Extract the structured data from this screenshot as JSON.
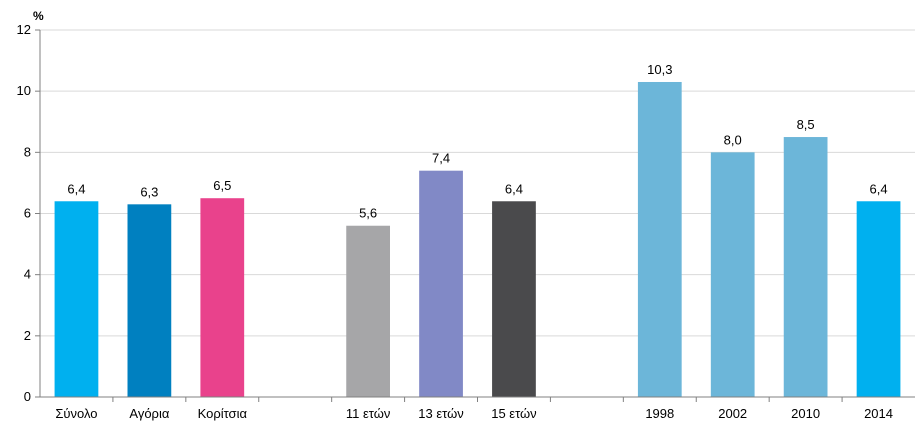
{
  "chart_data": {
    "type": "bar",
    "unit_label": "%",
    "ylim": [
      0,
      12
    ],
    "yticks": [
      0,
      2,
      4,
      6,
      8,
      10,
      12
    ],
    "grid": true,
    "groups": [
      {
        "categories": [
          "Σύνολο",
          "Αγόρια",
          "Κορίτσια"
        ],
        "values": [
          6.4,
          6.3,
          6.5
        ],
        "labels": [
          "6,4",
          "6,3",
          "6,5"
        ],
        "colors": [
          "#00b0ef",
          "#0080c0",
          "#e9428c"
        ]
      },
      {
        "categories": [
          "11 ετών",
          "13 ετών",
          "15 ετών"
        ],
        "values": [
          5.6,
          7.4,
          6.4
        ],
        "labels": [
          "5,6",
          "7,4",
          "6,4"
        ],
        "colors": [
          "#a6a6a8",
          "#8189c6",
          "#4a4a4c"
        ]
      },
      {
        "categories": [
          "1998",
          "2002",
          "2010",
          "2014"
        ],
        "values": [
          10.3,
          8.0,
          8.5,
          6.4
        ],
        "labels": [
          "10,3",
          "8,0",
          "8,5",
          "6,4"
        ],
        "colors": [
          "#6cb6d9",
          "#6cb6d9",
          "#6cb6d9",
          "#00b0ef"
        ]
      }
    ]
  }
}
